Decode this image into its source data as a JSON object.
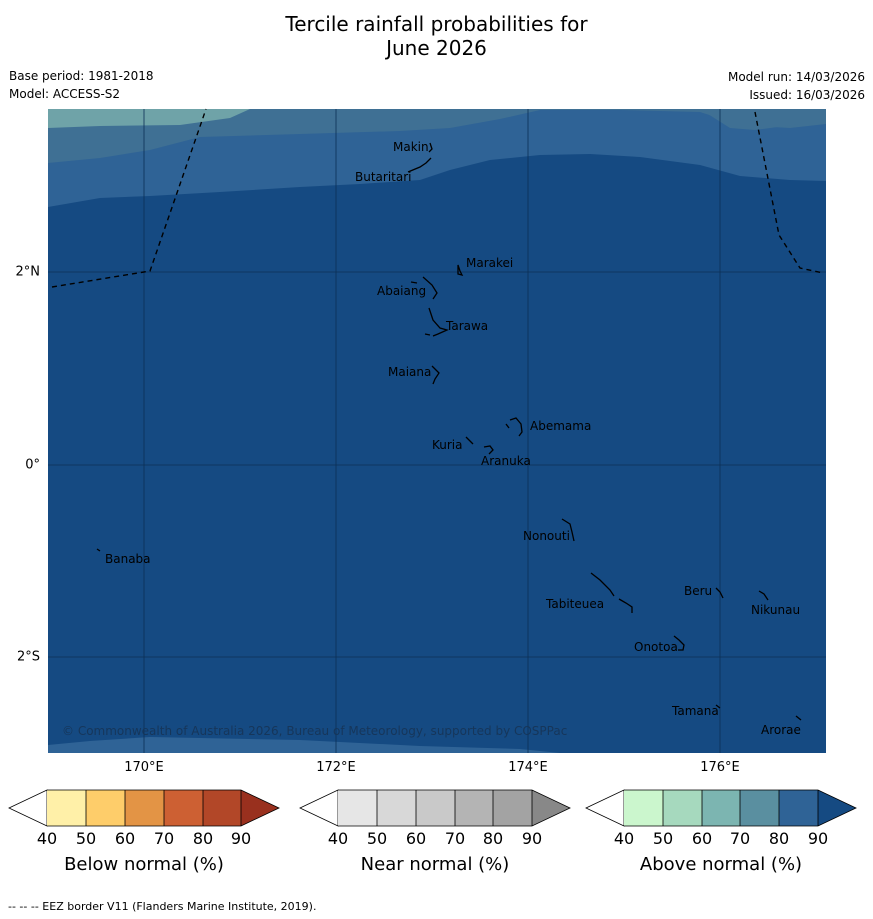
{
  "title_line1": "Tercile rainfall probabilities for",
  "title_line2": "June 2026",
  "base_period": "Base period: 1981-2018",
  "model": "Model: ACCESS-S2",
  "model_run": "Model run: 14/03/2026",
  "issued": "Issued: 16/03/2026",
  "copyright": "© Commonwealth of Australia 2026, Bureau of Meteorology, supported by COSPPac",
  "footer": "--  --  -- EEZ border V11 (Flanders Marine Institute, 2019).",
  "map": {
    "lon_labels": [
      "170°E",
      "172°E",
      "174°E",
      "176°E"
    ],
    "lat_labels": [
      "2°N",
      "0°",
      "2°S"
    ],
    "places": [
      "Makin",
      "Butaritari",
      "Marakei",
      "Abaiang",
      "Tarawa",
      "Maiana",
      "Abemama",
      "Kuria",
      "Aranuka",
      "Banaba",
      "Nonouti",
      "Beru",
      "Nikunau",
      "Tabiteuea",
      "Onotoa",
      "Tamana",
      "Arorae"
    ]
  },
  "colorbars": [
    {
      "label": "Below normal (%)",
      "ticks": [
        "40",
        "50",
        "60",
        "70",
        "80",
        "90"
      ],
      "colors": [
        "#fff0a8",
        "#fecd6a",
        "#e39445",
        "#cd6033",
        "#b24728",
        "#99301e"
      ]
    },
    {
      "label": "Near normal (%)",
      "ticks": [
        "40",
        "50",
        "60",
        "70",
        "80",
        "90"
      ],
      "colors": [
        "#e6e6e6",
        "#d8d8d8",
        "#c9c9c9",
        "#b4b4b4",
        "#a3a3a3",
        "#888888"
      ]
    },
    {
      "label": "Above normal (%)",
      "ticks": [
        "40",
        "50",
        "60",
        "70",
        "80",
        "90"
      ],
      "colors": [
        "#cbf6cd",
        "#a6d9be",
        "#7cb5b1",
        "#5a8fa0",
        "#2f6396",
        "#154a82"
      ]
    }
  ]
}
